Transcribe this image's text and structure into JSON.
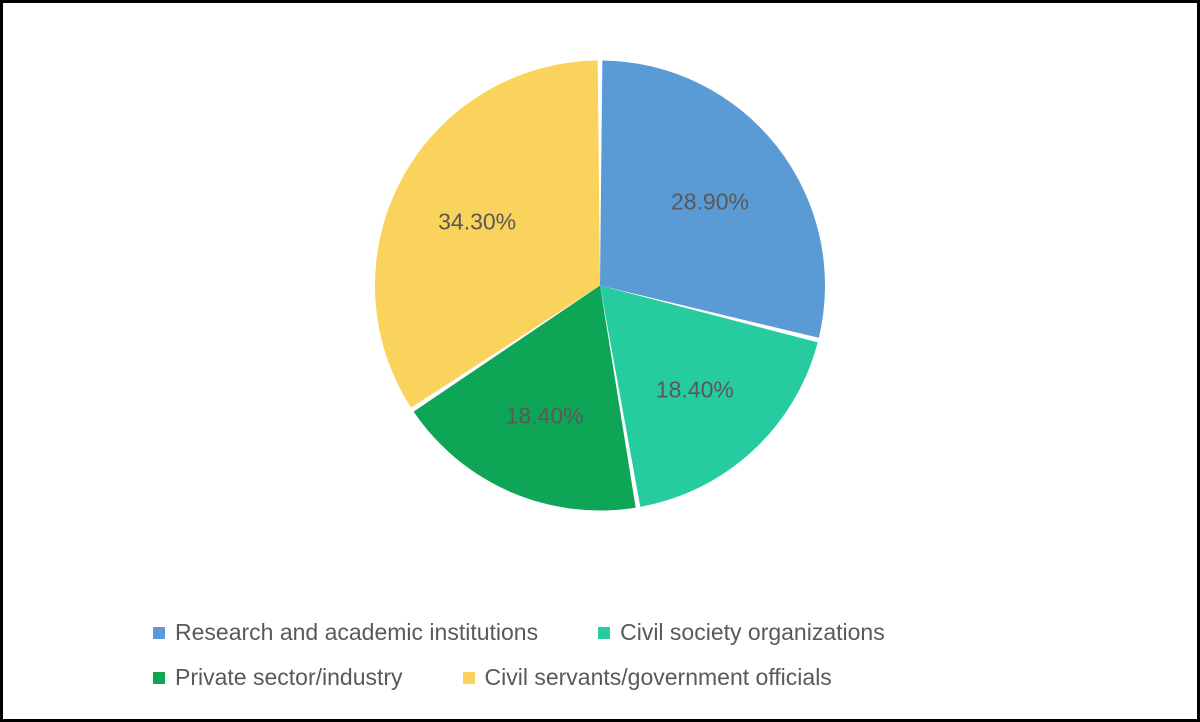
{
  "chart": {
    "type": "pie",
    "radius": 225,
    "center_offset_y": 0,
    "start_angle_deg": -90,
    "slice_gap_deg": 1.2,
    "background_color": "#ffffff",
    "border_color": "#000000",
    "label_fontsize": 23,
    "label_color": "#595959",
    "label_radius_factor": 0.62,
    "slices": [
      {
        "label": "Research and academic institutions",
        "value": 28.9,
        "display": "28.90%",
        "color": "#5b9bd5"
      },
      {
        "label": "Civil society organizations",
        "value": 18.4,
        "display": "18.40%",
        "color": "#27cba0"
      },
      {
        "label": "Private sector/industry",
        "value": 18.4,
        "display": "18.40%",
        "color": "#0fa557"
      },
      {
        "label": "Civil servants/government officials",
        "value": 34.3,
        "display": "34.30%",
        "color": "#f9d35b"
      }
    ],
    "legend": {
      "swatch_size": 12,
      "fontsize": 23,
      "text_color": "#595959"
    }
  }
}
